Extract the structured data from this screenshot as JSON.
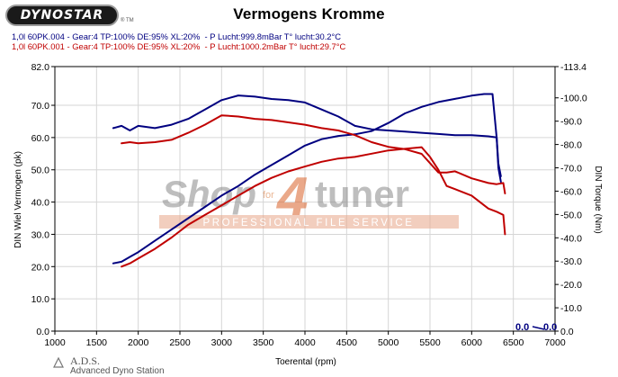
{
  "header": {
    "logo_text": "DYNOSTAR",
    "logo_tm": "® TM",
    "title": "Vermogens Kromme",
    "runs": [
      {
        "label": "1,0l 60PK.004 - Gear:4 TP:100% DE:95% XL:20%",
        "conditions": "  - P Lucht:999.8mBar T° lucht:30.2°C",
        "color": "#000080"
      },
      {
        "label": "1,0l 60PK.001 - Gear:4 TP:100% DE:95% XL:20%",
        "conditions": "  - P Lucht:1000.2mBar T° lucht:29.7°C",
        "color": "#c00000"
      }
    ]
  },
  "watermark": {
    "brand_left": "Shop",
    "brand_for": "for",
    "brand_digit": "4",
    "brand_right": "tuner",
    "tagline": "PROFESSIONAL FILE SERVICE"
  },
  "footer": {
    "logo": "A.D.S.",
    "subtitle": "Advanced Dyno Station"
  },
  "chart_data": {
    "type": "line",
    "xlabel": "Toerental (rpm)",
    "ylabel_left": "DIN Wiel Vermogen (pk)",
    "ylabel_right": "DIN Torque (Nm)",
    "xlim": [
      1000,
      7000
    ],
    "ylim_left": [
      0,
      82
    ],
    "ylim_right": [
      0,
      113.4
    ],
    "x_ticks": [
      1000,
      1500,
      2000,
      2500,
      3000,
      3500,
      4000,
      4500,
      5000,
      5500,
      6000,
      6500,
      7000
    ],
    "y_left_ticks": [
      "0.0",
      "10.0",
      "20.0",
      "30.0",
      "40.0",
      "50.0",
      "60.0",
      "70.0",
      "82.0"
    ],
    "y_left_tick_values": [
      0,
      10,
      20,
      30,
      40,
      50,
      60,
      70,
      82
    ],
    "y_right_ticks": [
      "0.0",
      "10.0",
      "20.0",
      "30.0",
      "40.0",
      "50.0",
      "60.0",
      "70.0",
      "80.0",
      "90.0",
      "100.0",
      "113.4"
    ],
    "y_right_tick_values": [
      0,
      10,
      20,
      30,
      40,
      50,
      60,
      70,
      80,
      90,
      100,
      113.4
    ],
    "grid": true,
    "legend": "none",
    "cursor_readout": {
      "value_left": "0.0",
      "value_right": "0.0"
    },
    "series": [
      {
        "name": "1,0l 60PK.004 vermogen",
        "axis": "left",
        "color": "#000080",
        "x": [
          1700,
          1800,
          1900,
          2000,
          2200,
          2400,
          2600,
          2800,
          3000,
          3200,
          3400,
          3600,
          3800,
          4000,
          4200,
          4400,
          4600,
          4800,
          5000,
          5200,
          5400,
          5600,
          5800,
          6000,
          6150,
          6250,
          6300,
          6320,
          6350
        ],
        "y": [
          21.0,
          21.5,
          23.0,
          24.5,
          28.0,
          31.5,
          35.0,
          38.5,
          42.0,
          45.0,
          48.5,
          51.5,
          54.5,
          57.5,
          59.5,
          60.5,
          61.0,
          62.0,
          64.5,
          67.5,
          69.5,
          71.0,
          72.0,
          73.0,
          73.5,
          73.5,
          60.0,
          52.0,
          48.0
        ]
      },
      {
        "name": "1,0l 60PK.004 torque",
        "axis": "right",
        "color": "#000080",
        "x": [
          1700,
          1800,
          1900,
          2000,
          2200,
          2400,
          2600,
          2800,
          3000,
          3200,
          3400,
          3600,
          3800,
          4000,
          4200,
          4400,
          4600,
          4800,
          5000,
          5200,
          5400,
          5600,
          5800,
          6000,
          6200,
          6300,
          6320,
          6350
        ],
        "y": [
          87.0,
          88.0,
          86.0,
          88.0,
          87.0,
          88.5,
          91.0,
          95.0,
          99.0,
          101.0,
          100.5,
          99.5,
          99.0,
          98.0,
          95.0,
          92.0,
          88.0,
          86.5,
          86.0,
          85.5,
          85.0,
          84.5,
          84.0,
          84.0,
          83.5,
          83.0,
          70.0,
          64.0
        ]
      },
      {
        "name": "1,0l 60PK.001 vermogen",
        "axis": "left",
        "color": "#c00000",
        "x": [
          1800,
          1900,
          2000,
          2200,
          2400,
          2600,
          2800,
          3000,
          3200,
          3400,
          3600,
          3800,
          4000,
          4200,
          4400,
          4600,
          4800,
          5000,
          5200,
          5400,
          5500,
          5600,
          5700,
          5800,
          6000,
          6200,
          6300,
          6380,
          6400
        ],
        "y": [
          20.0,
          21.0,
          22.5,
          25.5,
          29.0,
          33.0,
          36.0,
          39.0,
          42.0,
          45.0,
          47.5,
          49.5,
          51.0,
          52.5,
          53.5,
          54.0,
          55.0,
          56.0,
          56.5,
          57.0,
          54.0,
          50.0,
          45.0,
          44.0,
          42.0,
          38.0,
          37.0,
          36.0,
          30.0
        ]
      },
      {
        "name": "1,0l 60PK.001 torque",
        "axis": "right",
        "color": "#c00000",
        "x": [
          1800,
          1900,
          2000,
          2200,
          2400,
          2600,
          2800,
          3000,
          3200,
          3400,
          3600,
          3800,
          4000,
          4200,
          4400,
          4600,
          4800,
          5000,
          5200,
          5400,
          5500,
          5600,
          5700,
          5800,
          6000,
          6200,
          6300,
          6380,
          6400
        ],
        "y": [
          80.5,
          81.0,
          80.5,
          81.0,
          82.0,
          85.0,
          88.5,
          92.5,
          92.0,
          91.0,
          90.5,
          89.5,
          88.5,
          87.0,
          86.0,
          84.0,
          81.0,
          79.0,
          78.0,
          76.0,
          72.0,
          68.0,
          68.0,
          68.5,
          65.5,
          63.5,
          63.0,
          63.5,
          59.0
        ]
      }
    ]
  }
}
